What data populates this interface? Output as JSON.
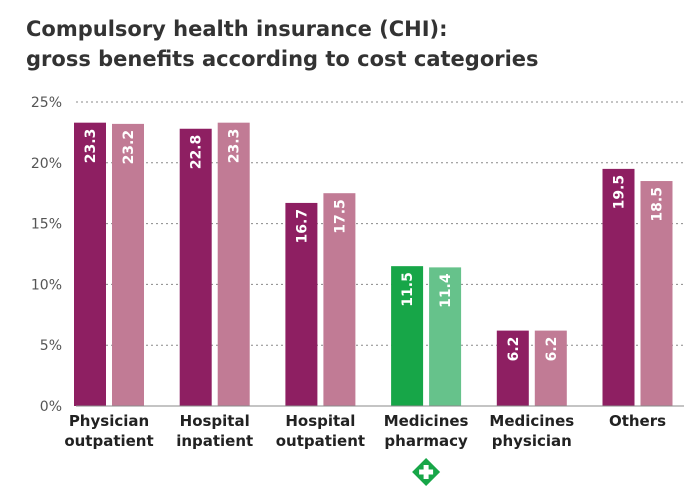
{
  "chart_data": {
    "type": "bar",
    "title_lines": [
      "Compulsory health insurance (CHI):",
      "gross benefits according to cost categories"
    ],
    "categories": [
      [
        "Physician",
        "outpatient"
      ],
      [
        "Hospital",
        "inpatient"
      ],
      [
        "Hospital",
        "outpatient"
      ],
      [
        "Medicines",
        "pharmacy"
      ],
      [
        "Medicines",
        "physician"
      ],
      [
        "Others"
      ]
    ],
    "series": [
      {
        "values": [
          23.3,
          22.8,
          16.7,
          11.5,
          6.2,
          19.5
        ],
        "color": "#8e1f62",
        "highlight_color": "#17a648"
      },
      {
        "values": [
          23.2,
          23.3,
          17.5,
          11.4,
          6.2,
          18.5
        ],
        "color": "#c17b95",
        "highlight_color": "#66c28b"
      }
    ],
    "highlight_category_index": 3,
    "y_ticks": [
      "0%",
      "5%",
      "10%",
      "15%",
      "20%",
      "25%"
    ],
    "ylim": [
      0,
      25
    ],
    "y_tick_step": 5,
    "grid": true,
    "legend": "none",
    "icon": {
      "name": "pharmacy-cross-icon",
      "color": "#17a648"
    }
  }
}
